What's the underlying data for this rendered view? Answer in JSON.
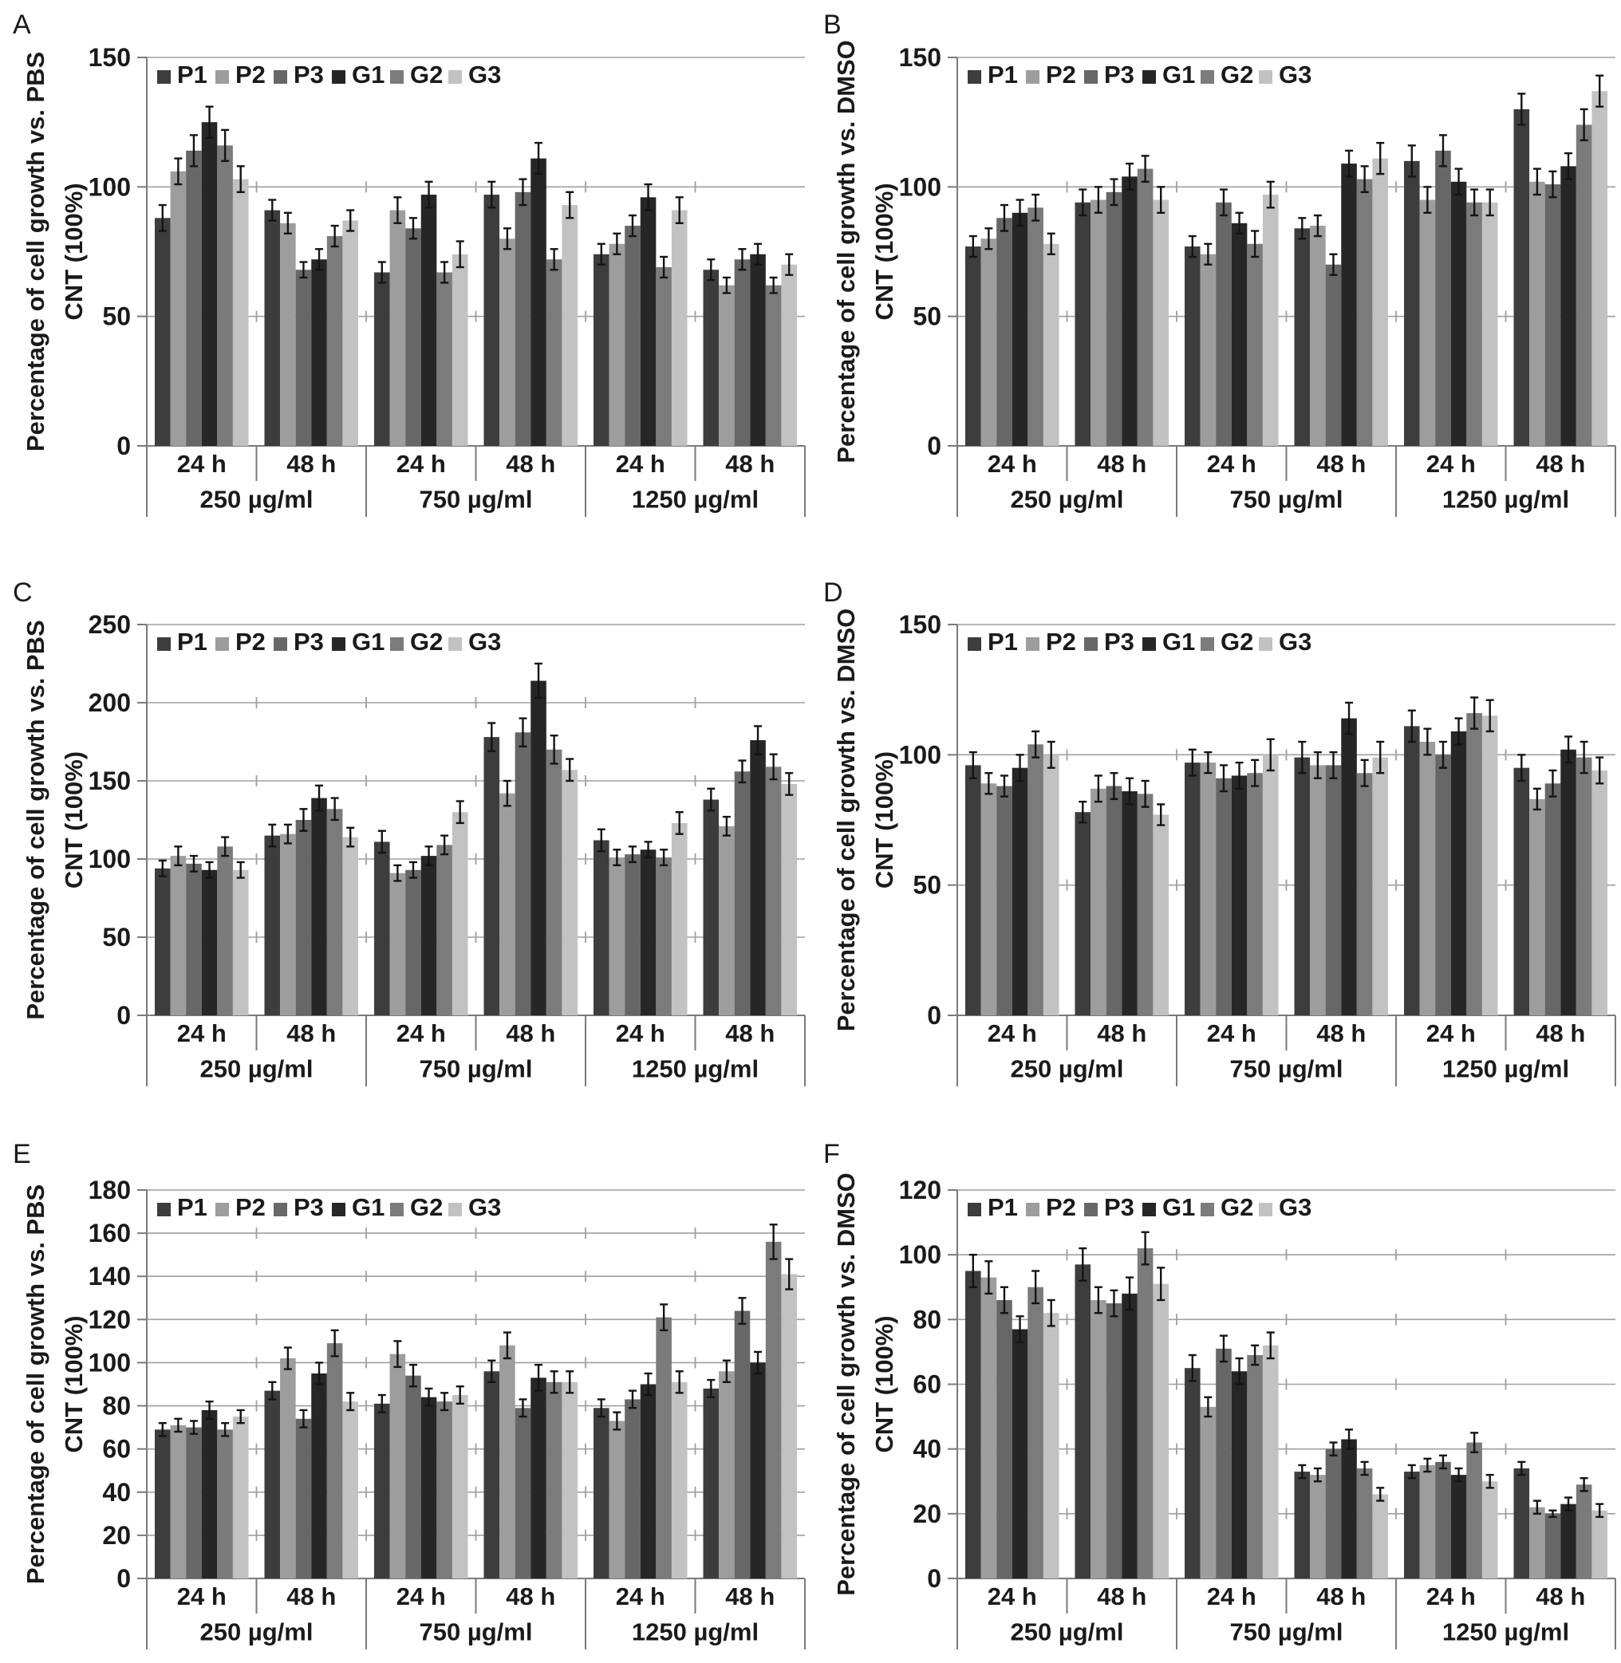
{
  "figure": {
    "series_names": [
      "P1",
      "P2",
      "P3",
      "G1",
      "G2",
      "G3"
    ],
    "series_colors": [
      "#3d3d3d",
      "#9d9d9d",
      "#676767",
      "#262626",
      "#7b7b7b",
      "#c2c2c2"
    ],
    "group_time_labels": [
      "24 h",
      "48 h",
      "24 h",
      "48 h",
      "24 h",
      "48 h"
    ],
    "conc_labels": [
      "250 µg/ml",
      "750 µg/ml",
      "1250 µg/ml"
    ],
    "grid_color": "#9f9f9f",
    "axis_color": "#7a7a7a",
    "error_bar_color": "#141414",
    "text_color": "#1a1a1a"
  },
  "chart_data": [
    {
      "panel": "A",
      "type": "bar",
      "ylabel_line1": "Percentage of cell growth vs. PBS",
      "ylabel_line2": "CNT (100%)",
      "ylim": [
        0,
        150
      ],
      "ytick_step": 50,
      "grid": true,
      "legend_position": "top-left-inside",
      "categories": [
        "250 µg/ml 24 h",
        "250 µg/ml 48 h",
        "750 µg/ml 24 h",
        "750 µg/ml 48 h",
        "1250 µg/ml 24 h",
        "1250 µg/ml 48 h"
      ],
      "series": [
        {
          "name": "P1",
          "values": [
            88,
            91,
            67,
            97,
            74,
            68
          ],
          "errors": [
            5,
            4,
            4,
            5,
            4,
            4
          ]
        },
        {
          "name": "P2",
          "values": [
            106,
            86,
            91,
            80,
            78,
            62
          ],
          "errors": [
            5,
            4,
            5,
            4,
            4,
            3
          ]
        },
        {
          "name": "P3",
          "values": [
            114,
            68,
            84,
            98,
            85,
            72
          ],
          "errors": [
            6,
            3,
            4,
            5,
            4,
            4
          ]
        },
        {
          "name": "G1",
          "values": [
            125,
            72,
            97,
            111,
            96,
            74
          ],
          "errors": [
            6,
            4,
            5,
            6,
            5,
            4
          ]
        },
        {
          "name": "G2",
          "values": [
            116,
            81,
            67,
            72,
            69,
            62
          ],
          "errors": [
            6,
            4,
            4,
            4,
            4,
            3
          ]
        },
        {
          "name": "G3",
          "values": [
            103,
            87,
            74,
            93,
            91,
            70
          ],
          "errors": [
            5,
            4,
            5,
            5,
            5,
            4
          ]
        }
      ]
    },
    {
      "panel": "B",
      "type": "bar",
      "ylabel_line1": "Percentage of cell growth vs. DMSO",
      "ylabel_line2": "CNT (100%)",
      "ylim": [
        0,
        150
      ],
      "ytick_step": 50,
      "grid": true,
      "legend_position": "top-left-inside",
      "categories": [
        "250 µg/ml 24 h",
        "250 µg/ml 48 h",
        "750 µg/ml 24 h",
        "750 µg/ml 48 h",
        "1250 µg/ml 24 h",
        "1250 µg/ml 48 h"
      ],
      "series": [
        {
          "name": "P1",
          "values": [
            77,
            94,
            77,
            84,
            110,
            130
          ],
          "errors": [
            4,
            5,
            4,
            4,
            6,
            6
          ]
        },
        {
          "name": "P2",
          "values": [
            80,
            95,
            74,
            85,
            95,
            102
          ],
          "errors": [
            4,
            5,
            4,
            4,
            5,
            5
          ]
        },
        {
          "name": "P3",
          "values": [
            88,
            98,
            94,
            70,
            114,
            101
          ],
          "errors": [
            5,
            5,
            5,
            4,
            6,
            5
          ]
        },
        {
          "name": "G1",
          "values": [
            90,
            104,
            86,
            109,
            102,
            108
          ],
          "errors": [
            5,
            5,
            4,
            5,
            5,
            5
          ]
        },
        {
          "name": "G2",
          "values": [
            92,
            107,
            78,
            103,
            94,
            124
          ],
          "errors": [
            5,
            5,
            5,
            5,
            5,
            6
          ]
        },
        {
          "name": "G3",
          "values": [
            78,
            95,
            97,
            111,
            94,
            137
          ],
          "errors": [
            4,
            5,
            5,
            6,
            5,
            6
          ]
        }
      ]
    },
    {
      "panel": "C",
      "type": "bar",
      "ylabel_line1": "Percentage of cell growth vs. PBS",
      "ylabel_line2": "CNT (100%)",
      "ylim": [
        0,
        250
      ],
      "ytick_step": 50,
      "grid": true,
      "legend_position": "top-left-inside",
      "categories": [
        "250 µg/ml 24 h",
        "250 µg/ml 48 h",
        "750 µg/ml 24 h",
        "750 µg/ml 48 h",
        "1250 µg/ml 24 h",
        "1250 µg/ml 48 h"
      ],
      "series": [
        {
          "name": "P1",
          "values": [
            94,
            115,
            111,
            178,
            112,
            138
          ],
          "errors": [
            5,
            7,
            7,
            9,
            7,
            7
          ]
        },
        {
          "name": "P2",
          "values": [
            102,
            116,
            91,
            142,
            101,
            121
          ],
          "errors": [
            6,
            6,
            5,
            8,
            5,
            6
          ]
        },
        {
          "name": "P3",
          "values": [
            97,
            125,
            93,
            181,
            103,
            156
          ],
          "errors": [
            5,
            7,
            5,
            9,
            5,
            7
          ]
        },
        {
          "name": "G1",
          "values": [
            93,
            139,
            102,
            214,
            106,
            176
          ],
          "errors": [
            5,
            8,
            6,
            11,
            5,
            9
          ]
        },
        {
          "name": "G2",
          "values": [
            108,
            132,
            109,
            170,
            101,
            159
          ],
          "errors": [
            6,
            7,
            6,
            9,
            5,
            8
          ]
        },
        {
          "name": "G3",
          "values": [
            93,
            114,
            130,
            157,
            123,
            148
          ],
          "errors": [
            5,
            6,
            7,
            7,
            7,
            7
          ]
        }
      ]
    },
    {
      "panel": "D",
      "type": "bar",
      "ylabel_line1": "Percentage of cell growth vs. DMSO",
      "ylabel_line2": "CNT (100%)",
      "ylim": [
        0,
        150
      ],
      "ytick_step": 50,
      "grid": true,
      "legend_position": "top-left-inside",
      "categories": [
        "250 µg/ml 24 h",
        "250 µg/ml 48 h",
        "750 µg/ml 24 h",
        "750 µg/ml 48 h",
        "1250 µg/ml 24 h",
        "1250 µg/ml 48 h"
      ],
      "series": [
        {
          "name": "P1",
          "values": [
            96,
            78,
            97,
            99,
            111,
            95
          ],
          "errors": [
            5,
            4,
            5,
            6,
            6,
            5
          ]
        },
        {
          "name": "P2",
          "values": [
            89,
            87,
            97,
            96,
            105,
            83
          ],
          "errors": [
            4,
            5,
            4,
            5,
            5,
            4
          ]
        },
        {
          "name": "P3",
          "values": [
            88,
            88,
            91,
            96,
            100,
            89
          ],
          "errors": [
            4,
            5,
            5,
            5,
            5,
            5
          ]
        },
        {
          "name": "G1",
          "values": [
            95,
            86,
            92,
            114,
            109,
            102
          ],
          "errors": [
            5,
            5,
            5,
            6,
            5,
            5
          ]
        },
        {
          "name": "G2",
          "values": [
            104,
            85,
            93,
            93,
            116,
            99
          ],
          "errors": [
            5,
            5,
            5,
            5,
            6,
            6
          ]
        },
        {
          "name": "G3",
          "values": [
            100,
            77,
            100,
            99,
            115,
            94
          ],
          "errors": [
            5,
            4,
            6,
            6,
            6,
            5
          ]
        }
      ]
    },
    {
      "panel": "E",
      "type": "bar",
      "ylabel_line1": "Percentage of cell growth vs. PBS",
      "ylabel_line2": "CNT (100%)",
      "ylim": [
        0,
        180
      ],
      "ytick_step": 20,
      "grid": true,
      "legend_position": "top-left-inside",
      "categories": [
        "250 µg/ml 24 h",
        "250 µg/ml 48 h",
        "750 µg/ml 24 h",
        "750 µg/ml 48 h",
        "1250 µg/ml 24 h",
        "1250 µg/ml 48 h"
      ],
      "series": [
        {
          "name": "P1",
          "values": [
            69,
            87,
            81,
            96,
            79,
            88
          ],
          "errors": [
            3,
            4,
            4,
            5,
            4,
            4
          ]
        },
        {
          "name": "P2",
          "values": [
            71,
            102,
            104,
            108,
            73,
            96
          ],
          "errors": [
            3,
            5,
            6,
            6,
            4,
            5
          ]
        },
        {
          "name": "P3",
          "values": [
            70,
            74,
            94,
            79,
            83,
            124
          ],
          "errors": [
            3,
            4,
            5,
            4,
            4,
            6
          ]
        },
        {
          "name": "G1",
          "values": [
            78,
            95,
            84,
            93,
            90,
            100
          ],
          "errors": [
            4,
            5,
            4,
            6,
            5,
            5
          ]
        },
        {
          "name": "G2",
          "values": [
            69,
            109,
            82,
            91,
            121,
            156
          ],
          "errors": [
            3,
            6,
            4,
            5,
            6,
            8
          ]
        },
        {
          "name": "G3",
          "values": [
            75,
            82,
            85,
            91,
            91,
            141
          ],
          "errors": [
            3,
            4,
            4,
            5,
            5,
            7
          ]
        }
      ]
    },
    {
      "panel": "F",
      "type": "bar",
      "ylabel_line1": "Percentage of cell growth vs. DMSO",
      "ylabel_line2": "CNT (100%)",
      "ylim": [
        0,
        120
      ],
      "ytick_step": 20,
      "grid": true,
      "legend_position": "top-left-inside",
      "categories": [
        "250 µg/ml 24 h",
        "250 µg/ml 48 h",
        "750 µg/ml 24 h",
        "750 µg/ml 48 h",
        "1250 µg/ml 24 h",
        "1250 µg/ml 48 h"
      ],
      "series": [
        {
          "name": "P1",
          "values": [
            95,
            97,
            65,
            33,
            33,
            34
          ],
          "errors": [
            5,
            5,
            4,
            2,
            2,
            2
          ]
        },
        {
          "name": "P2",
          "values": [
            93,
            86,
            53,
            32,
            35,
            22
          ],
          "errors": [
            5,
            4,
            3,
            2,
            2,
            2
          ]
        },
        {
          "name": "P3",
          "values": [
            86,
            85,
            71,
            40,
            36,
            20
          ],
          "errors": [
            4,
            4,
            4,
            2,
            2,
            1
          ]
        },
        {
          "name": "G1",
          "values": [
            77,
            88,
            64,
            43,
            32,
            23
          ],
          "errors": [
            4,
            5,
            4,
            3,
            2,
            2
          ]
        },
        {
          "name": "G2",
          "values": [
            90,
            102,
            69,
            34,
            42,
            29
          ],
          "errors": [
            5,
            5,
            3,
            2,
            3,
            2
          ]
        },
        {
          "name": "G3",
          "values": [
            82,
            91,
            72,
            26,
            30,
            21
          ],
          "errors": [
            4,
            5,
            4,
            2,
            2,
            2
          ]
        }
      ]
    }
  ]
}
